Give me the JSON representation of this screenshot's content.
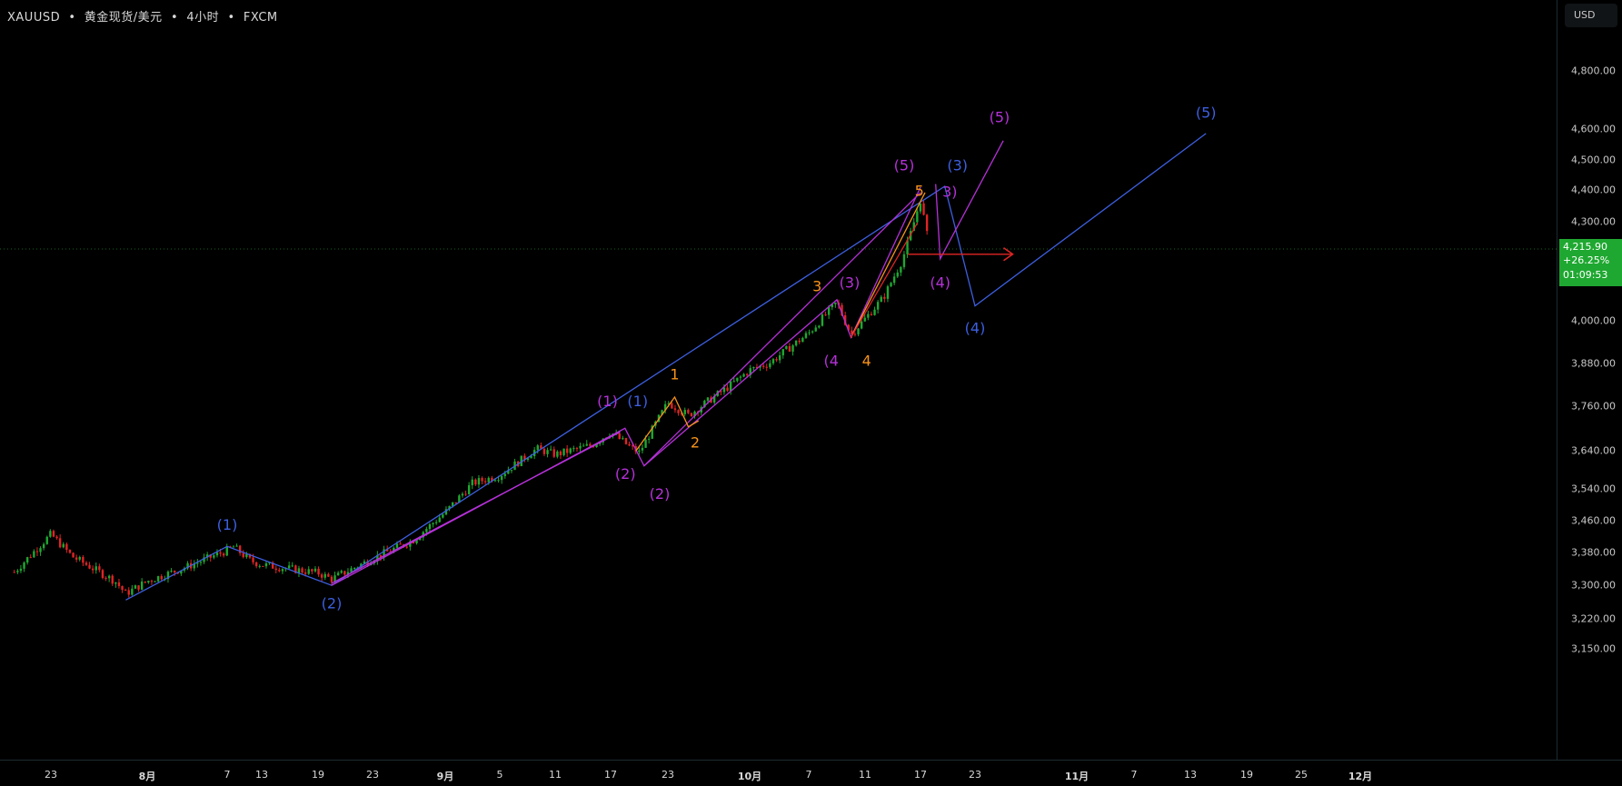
{
  "header": {
    "symbol": "XAUUSD",
    "name": "黄金现货/美元",
    "interval": "4小时",
    "source": "FXCM",
    "separator": "•"
  },
  "price_axis": {
    "currency_button": "USD",
    "last_price": "4,215.90",
    "change_pct": "+26.25%",
    "countdown": "01:09:53",
    "last_price_color": "#1fa831"
  },
  "chart_data": {
    "type": "candlestick",
    "y_scale": "log",
    "ylim": [
      3110,
      4950
    ],
    "y_ticks": [
      {
        "value": 4800,
        "label": "4,800.00"
      },
      {
        "value": 4600,
        "label": "4,600.00"
      },
      {
        "value": 4500,
        "label": "4,500.00"
      },
      {
        "value": 4400,
        "label": "4,400.00"
      },
      {
        "value": 4300,
        "label": "4,300.00"
      },
      {
        "value": 4000,
        "label": "4,000.00"
      },
      {
        "value": 3880,
        "label": "3,880.00"
      },
      {
        "value": 3760,
        "label": "3,760.00"
      },
      {
        "value": 3640,
        "label": "3,640.00"
      },
      {
        "value": 3540,
        "label": "3,540.00"
      },
      {
        "value": 3460,
        "label": "3,460.00"
      },
      {
        "value": 3380,
        "label": "3,380.00"
      },
      {
        "value": 3300,
        "label": "3,300.00"
      },
      {
        "value": 3220,
        "label": "3,220.00"
      },
      {
        "value": 3150,
        "label": "3,150.00"
      }
    ],
    "x_ticks": [
      {
        "date": "2025-07-23",
        "label": "23"
      },
      {
        "date": "2025-08-01",
        "label": "8月",
        "month": true
      },
      {
        "date": "2025-08-07",
        "label": "7"
      },
      {
        "date": "2025-08-13",
        "label": "13"
      },
      {
        "date": "2025-08-19",
        "label": "19"
      },
      {
        "date": "2025-08-23",
        "label": "23"
      },
      {
        "date": "2025-09-01",
        "label": "9月",
        "month": true
      },
      {
        "date": "2025-09-05",
        "label": "5"
      },
      {
        "date": "2025-09-11",
        "label": "11"
      },
      {
        "date": "2025-09-17",
        "label": "17"
      },
      {
        "date": "2025-09-23",
        "label": "23"
      },
      {
        "date": "2025-10-01",
        "label": "10月",
        "month": true
      },
      {
        "date": "2025-10-07",
        "label": "7"
      },
      {
        "date": "2025-10-11",
        "label": "11"
      },
      {
        "date": "2025-10-17",
        "label": "17"
      },
      {
        "date": "2025-10-23",
        "label": "23"
      },
      {
        "date": "2025-11-01",
        "label": "11月",
        "month": true
      },
      {
        "date": "2025-11-07",
        "label": "7"
      },
      {
        "date": "2025-11-13",
        "label": "13"
      },
      {
        "date": "2025-11-19",
        "label": "19"
      },
      {
        "date": "2025-11-25",
        "label": "25"
      },
      {
        "date": "2025-12-01",
        "label": "12月",
        "month": true
      }
    ],
    "price_path": [
      [
        "2025-07-19T12:00",
        3332
      ],
      [
        "2025-07-23",
        3425
      ],
      [
        "2025-07-25",
        3370
      ],
      [
        "2025-07-29",
        3310
      ],
      [
        "2025-07-30",
        3280
      ],
      [
        "2025-08-01",
        3310
      ],
      [
        "2025-08-04",
        3345
      ],
      [
        "2025-08-07",
        3385
      ],
      [
        "2025-08-08",
        3395
      ],
      [
        "2025-08-11",
        3360
      ],
      [
        "2025-08-13",
        3350
      ],
      [
        "2025-08-19",
        3330
      ],
      [
        "2025-08-20",
        3315
      ],
      [
        "2025-08-23",
        3365
      ],
      [
        "2025-08-28",
        3410
      ],
      [
        "2025-09-01",
        3480
      ],
      [
        "2025-09-03",
        3555
      ],
      [
        "2025-09-05",
        3575
      ],
      [
        "2025-09-09",
        3645
      ],
      [
        "2025-09-11",
        3630
      ],
      [
        "2025-09-15",
        3655
      ],
      [
        "2025-09-17",
        3690
      ],
      [
        "2025-09-19",
        3650
      ],
      [
        "2025-09-20",
        3635
      ],
      [
        "2025-09-23",
        3770
      ],
      [
        "2025-09-25",
        3735
      ],
      [
        "2025-09-29",
        3815
      ],
      [
        "2025-10-01",
        3860
      ],
      [
        "2025-10-03",
        3880
      ],
      [
        "2025-10-07",
        3965
      ],
      [
        "2025-10-09",
        4055
      ],
      [
        "2025-10-10",
        3960
      ],
      [
        "2025-10-13",
        4070
      ],
      [
        "2025-10-15",
        4180
      ],
      [
        "2025-10-16",
        4270
      ],
      [
        "2025-10-17",
        4370
      ],
      [
        "2025-10-18",
        4216
      ]
    ],
    "last_price": 4215.9,
    "up_color": "#1fa831",
    "down_color": "#e02424",
    "wave_lines": [
      {
        "color": "#3d5fe0",
        "points": [
          [
            "2025-07-30",
            3265
          ],
          [
            "2025-08-07",
            3395
          ],
          [
            "2025-08-20",
            3300
          ],
          [
            "2025-10-19T16:00",
            4413
          ],
          [
            "2025-10-23",
            4045
          ],
          [
            "2025-11-14T16:00",
            4586
          ]
        ]
      },
      {
        "color": "#b531d8",
        "points": [
          [
            "2025-08-20",
            3300
          ],
          [
            "2025-09-18T12:00",
            3700
          ],
          [
            "2025-09-20T12:00",
            3600
          ],
          [
            "2025-10-09",
            4063
          ],
          [
            "2025-10-10",
            3953
          ],
          [
            "2025-10-17",
            4410
          ]
        ]
      },
      {
        "color": "#b531d8",
        "points": [
          [
            "2025-08-20",
            3305
          ],
          [
            "2025-09-18",
            3690
          ]
        ]
      },
      {
        "color": "#b531d8",
        "points": [
          [
            "2025-10-18T16:00",
            4420
          ],
          [
            "2025-10-19T04:00",
            4186
          ],
          [
            "2025-10-25T12:00",
            4562
          ]
        ]
      },
      {
        "color": "#b531d8",
        "points": [
          [
            "2025-09-20T12:00",
            3600
          ],
          [
            "2025-10-17",
            4393
          ]
        ]
      },
      {
        "color": "#f7931a",
        "points": [
          [
            "2025-09-19T16:00",
            3640
          ],
          [
            "2025-09-23T16:00",
            3785
          ],
          [
            "2025-09-25",
            3704
          ],
          [
            "2025-09-26",
            3720
          ]
        ]
      },
      {
        "color": "#f7931a",
        "points": [
          [
            "2025-10-10",
            3953
          ],
          [
            "2025-10-17T12:00",
            4393
          ]
        ]
      },
      {
        "color": "#e02424",
        "points": [
          [
            "2025-10-10",
            3953
          ],
          [
            "2025-10-16T16:00",
            4297
          ]
        ]
      },
      {
        "color": "#e02424",
        "arrow": true,
        "points": [
          [
            "2025-10-15T16:00",
            4200
          ],
          [
            "2025-10-26T08:00",
            4200
          ]
        ]
      }
    ],
    "wave_labels": [
      {
        "text": "(1)",
        "color": "#3d5fe0",
        "date": "2025-08-07",
        "price": 3447
      },
      {
        "text": "(2)",
        "color": "#3d5fe0",
        "date": "2025-08-20",
        "price": 3255
      },
      {
        "text": "(1)",
        "color": "#b531d8",
        "date": "2025-09-18",
        "price": 3771
      },
      {
        "text": "(1)",
        "color": "#3d5fe0",
        "date": "2025-09-18T12:00",
        "price": 3771
      },
      {
        "text": "(2)",
        "color": "#b531d8",
        "date": "2025-09-19T12:00",
        "price": 3572
      },
      {
        "text": "(2)",
        "color": "#b531d8",
        "date": "2025-09-21",
        "price": 3544
      },
      {
        "text": "1",
        "color": "#f7931a",
        "date": "2025-09-23T16:00",
        "price": 3846
      },
      {
        "text": "2",
        "color": "#f7931a",
        "date": "2025-09-25T16:00",
        "price": 3659
      },
      {
        "text": "(3)",
        "color": "#b531d8",
        "date": "2025-10-09",
        "price": 4111
      },
      {
        "text": "3",
        "color": "#f7931a",
        "date": "2025-10-08T12:00",
        "price": 4100
      },
      {
        "text": "(4",
        "color": "#b531d8",
        "date": "2025-10-09T12:00",
        "price": 3884
      },
      {
        "text": "4",
        "color": "#f7931a",
        "date": "2025-10-10T08:00",
        "price": 3884
      },
      {
        "text": "(5)",
        "color": "#b531d8",
        "date": "2025-10-17",
        "price": 4478
      },
      {
        "text": "(3)",
        "color": "#3d5fe0",
        "date": "2025-10-19T16:00",
        "price": 4478
      },
      {
        "text": "5",
        "color": "#f7931a",
        "date": "2025-10-17T16:00",
        "price": 4431
      },
      {
        "text": "3)",
        "color": "#b531d8",
        "date": "2025-10-18T20:00",
        "price": 4427
      },
      {
        "text": "(4)",
        "color": "#b531d8",
        "date": "2025-10-19T04:00",
        "price": 4111
      },
      {
        "text": "(4)",
        "color": "#3d5fe0",
        "date": "2025-10-23",
        "price": 3978
      },
      {
        "text": "(5)",
        "color": "#b531d8",
        "date": "2025-10-25T04:00",
        "price": 4638
      },
      {
        "text": "(5)",
        "color": "#3d5fe0",
        "date": "2025-11-14T16:00",
        "price": 4653
      }
    ]
  }
}
